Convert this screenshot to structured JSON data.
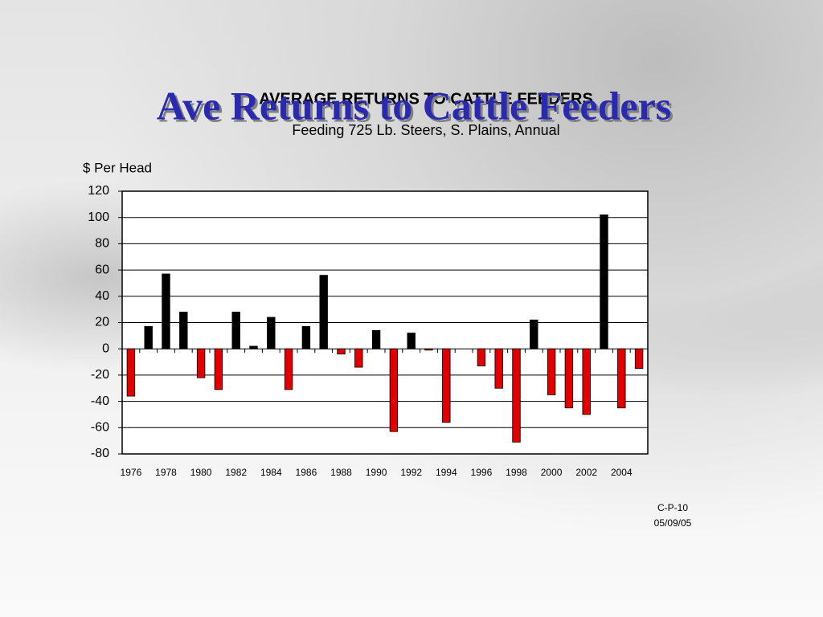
{
  "slide_title": "Ave Returns to Cattle Feeders",
  "footer": {
    "code": "C-P-10",
    "date": "05/09/05"
  },
  "chart_data": {
    "type": "bar",
    "title": "AVERAGE  RETURNS  TO  CATTLE  FEEDERS",
    "subtitle": "Feeding 725 Lb. Steers, S. Plains, Annual",
    "y_label": "$ Per Head",
    "categories": [
      "1976",
      null,
      "1978",
      null,
      "1980",
      null,
      "1982",
      null,
      "1984",
      null,
      "1986",
      null,
      "1988",
      null,
      "1990",
      null,
      "1992",
      null,
      "1994",
      null,
      "1996",
      null,
      "1998",
      null,
      "2000",
      null,
      "2002",
      null,
      "2004",
      null
    ],
    "values": [
      -36,
      17,
      57,
      28,
      -22,
      -31,
      28,
      2,
      24,
      -31,
      17,
      56,
      -4,
      -14,
      14,
      -63,
      12,
      -1,
      -56,
      0,
      -13,
      -30,
      -71,
      22,
      -35,
      -45,
      -50,
      102,
      -45,
      -15
    ],
    "positive_color": "#000000",
    "negative_color": "#e00000",
    "ylim": [
      -80,
      120
    ],
    "yticks": [
      -80,
      -60,
      -40,
      -20,
      0,
      20,
      40,
      60,
      80,
      100,
      120
    ],
    "grid": true
  }
}
